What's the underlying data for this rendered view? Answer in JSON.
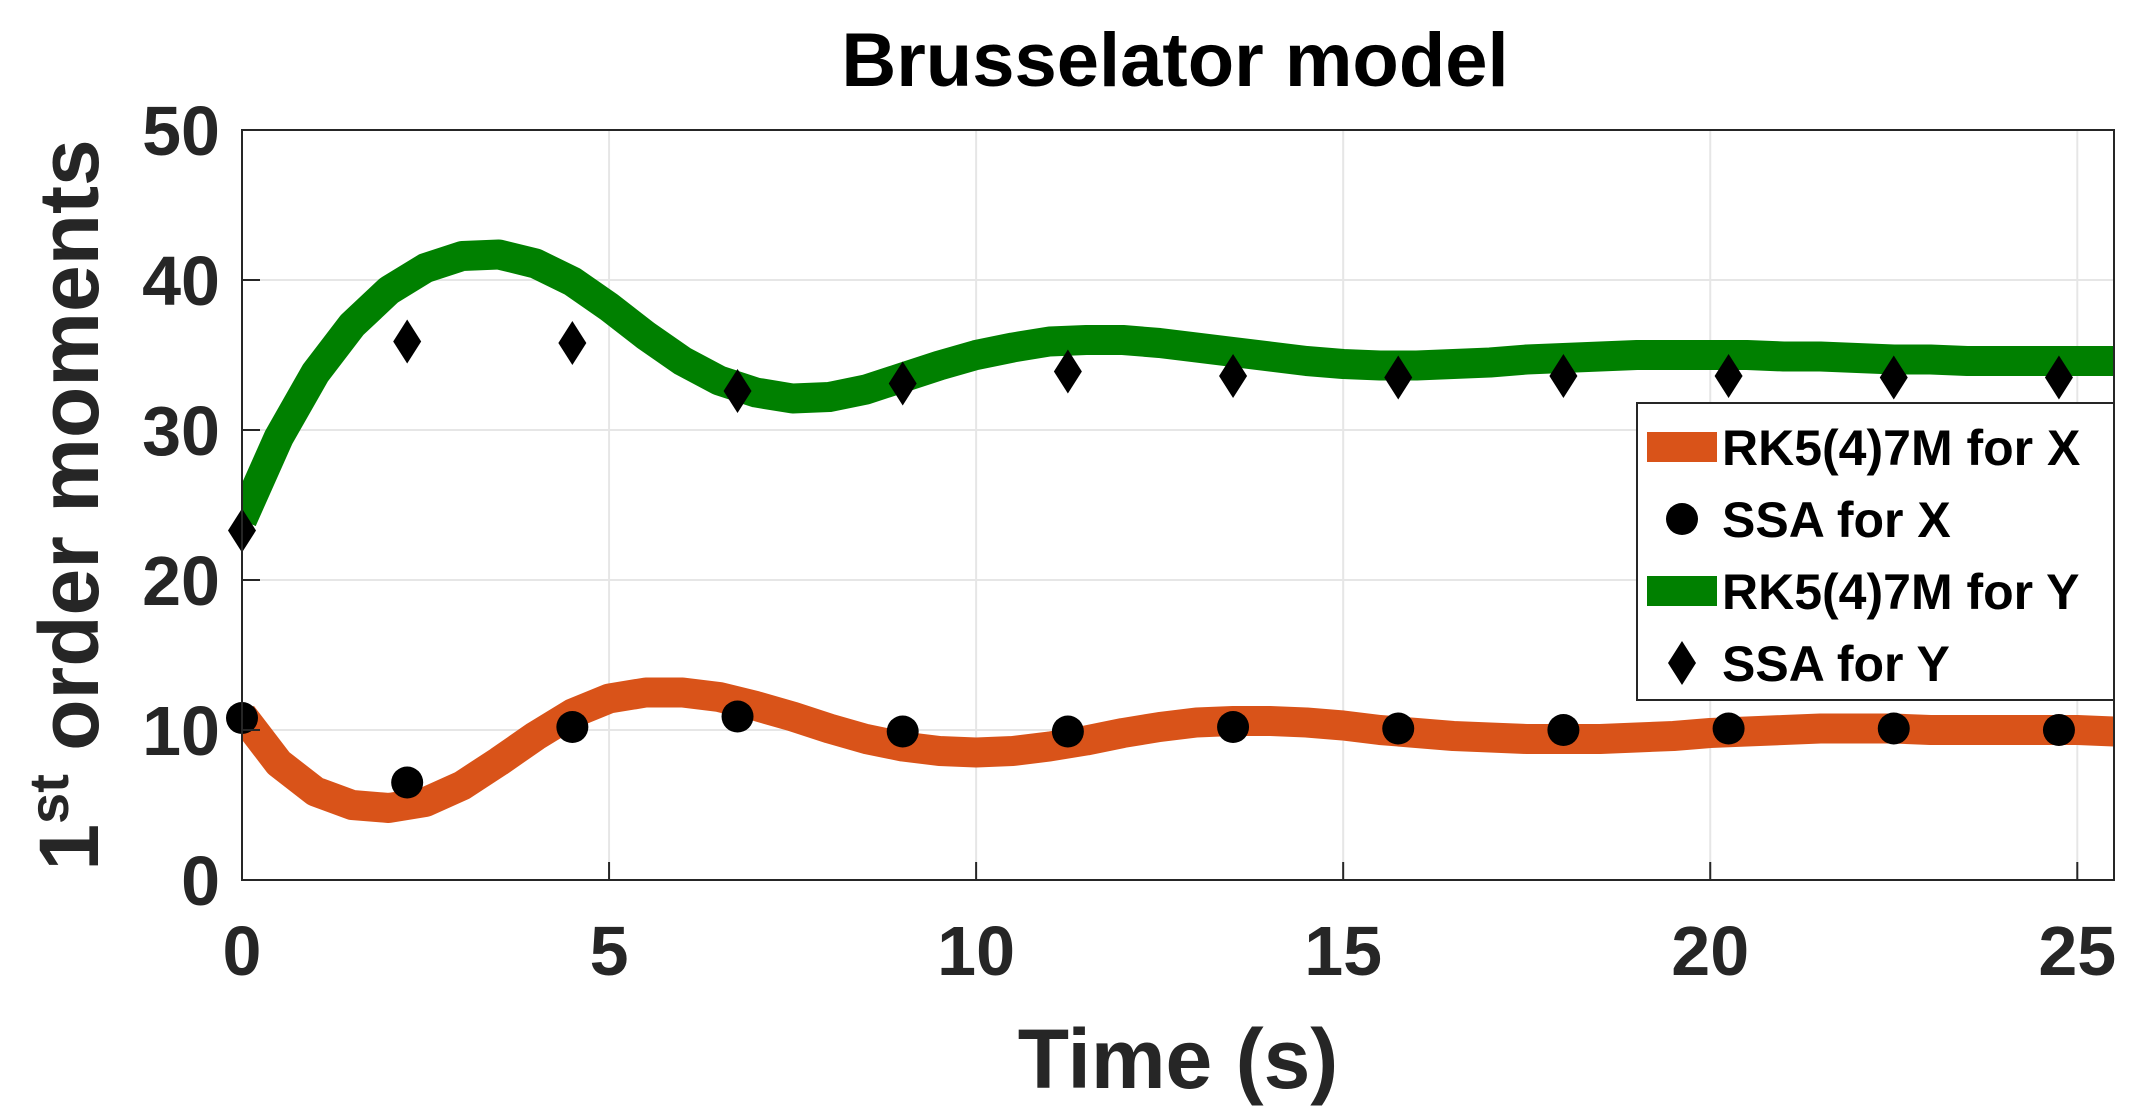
{
  "chart_data": {
    "type": "line",
    "title": "Brusselator model",
    "xlabel": "Time (s)",
    "ylabel_prefix": "1",
    "ylabel_superscript": "st",
    "ylabel_suffix": " order moments",
    "xlim": [
      0,
      25.5
    ],
    "ylim": [
      0,
      50
    ],
    "xticks": [
      0,
      5,
      10,
      15,
      20,
      25
    ],
    "yticks": [
      0,
      10,
      20,
      30,
      40,
      50
    ],
    "grid": true,
    "legend_position": "right",
    "series": [
      {
        "name": "RK5(4)7M for X",
        "kind": "line",
        "color": "#D95319",
        "x": [
          0,
          0.5,
          1,
          1.5,
          2,
          2.5,
          3,
          3.5,
          4,
          4.5,
          5,
          5.5,
          6,
          6.5,
          7,
          7.5,
          8,
          8.5,
          9,
          9.5,
          10,
          10.5,
          11,
          11.5,
          12,
          12.5,
          13,
          13.5,
          14,
          14.5,
          15,
          15.5,
          16,
          16.5,
          17,
          17.5,
          18,
          18.5,
          19,
          19.5,
          20,
          20.5,
          21,
          21.5,
          22,
          22.5,
          23,
          23.5,
          24,
          24.5,
          25,
          25.5
        ],
        "values": [
          11.0,
          7.8,
          5.9,
          5.0,
          4.8,
          5.2,
          6.3,
          7.9,
          9.6,
          11.1,
          12.1,
          12.5,
          12.5,
          12.2,
          11.6,
          10.9,
          10.1,
          9.4,
          8.9,
          8.6,
          8.5,
          8.6,
          8.9,
          9.3,
          9.8,
          10.2,
          10.5,
          10.6,
          10.6,
          10.5,
          10.3,
          10.0,
          9.8,
          9.6,
          9.5,
          9.4,
          9.4,
          9.4,
          9.5,
          9.6,
          9.8,
          9.9,
          10.0,
          10.1,
          10.1,
          10.1,
          10.0,
          10.0,
          10.0,
          10.0,
          10.0,
          9.9
        ]
      },
      {
        "name": "SSA for X",
        "kind": "marker",
        "marker": "circle",
        "color": "#000000",
        "x": [
          0,
          2.25,
          4.5,
          6.75,
          9.0,
          11.25,
          13.5,
          15.75,
          18.0,
          20.25,
          22.5,
          24.75
        ],
        "values": [
          10.8,
          6.5,
          10.2,
          10.9,
          9.9,
          9.9,
          10.2,
          10.1,
          10.0,
          10.1,
          10.1,
          10.0
        ]
      },
      {
        "name": "RK5(4)7M for Y",
        "kind": "line",
        "color": "#008000",
        "x": [
          0,
          0.5,
          1,
          1.5,
          2,
          2.5,
          3,
          3.5,
          4,
          4.5,
          5,
          5.5,
          6,
          6.5,
          7,
          7.5,
          8,
          8.5,
          9,
          9.5,
          10,
          10.5,
          11,
          11.5,
          12,
          12.5,
          13,
          13.5,
          14,
          14.5,
          15,
          15.5,
          16,
          16.5,
          17,
          17.5,
          18,
          18.5,
          19,
          19.5,
          20,
          20.5,
          21,
          21.5,
          22,
          22.5,
          23,
          23.5,
          24,
          24.5,
          25,
          25.5
        ],
        "values": [
          24.0,
          29.5,
          33.8,
          37.0,
          39.3,
          40.8,
          41.6,
          41.7,
          41.1,
          39.9,
          38.2,
          36.3,
          34.6,
          33.3,
          32.5,
          32.1,
          32.2,
          32.7,
          33.5,
          34.3,
          35.0,
          35.5,
          35.9,
          36.0,
          36.0,
          35.8,
          35.5,
          35.2,
          34.9,
          34.6,
          34.4,
          34.3,
          34.3,
          34.4,
          34.5,
          34.7,
          34.8,
          34.9,
          35.0,
          35.0,
          35.0,
          35.0,
          34.9,
          34.9,
          34.8,
          34.7,
          34.7,
          34.6,
          34.6,
          34.6,
          34.6,
          34.6
        ]
      },
      {
        "name": "SSA for Y",
        "kind": "marker",
        "marker": "diamond",
        "color": "#000000",
        "x": [
          0,
          2.25,
          4.5,
          6.75,
          9.0,
          11.25,
          13.5,
          15.75,
          18.0,
          20.25,
          22.5,
          24.75
        ],
        "values": [
          23.3,
          35.9,
          35.8,
          32.6,
          33.1,
          33.9,
          33.6,
          33.5,
          33.6,
          33.6,
          33.5,
          33.5
        ]
      }
    ]
  }
}
